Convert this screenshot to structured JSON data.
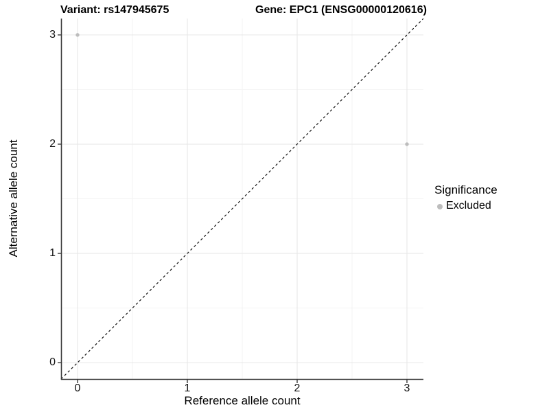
{
  "header": {
    "title_left": "Variant: rs147945675",
    "title_right": "Gene: EPC1 (ENSG00000120616)"
  },
  "axes": {
    "x_label": "Reference allele count",
    "y_label": "Alternative allele count"
  },
  "legend": {
    "title": "Significance",
    "items": [
      {
        "label": "Excluded",
        "color": "#bdbdbd"
      }
    ]
  },
  "chart_data": {
    "type": "scatter",
    "titles": [
      "Variant: rs147945675",
      "Gene: EPC1 (ENSG00000120616)"
    ],
    "xlabel": "Reference allele count",
    "ylabel": "Alternative allele count",
    "xlim": [
      -0.15,
      3.15
    ],
    "ylim": [
      -0.15,
      3.15
    ],
    "x_ticks": [
      0,
      1,
      2,
      3
    ],
    "y_ticks": [
      0,
      1,
      2,
      3
    ],
    "minor_gridlines": [
      0.5,
      1.5,
      2.5
    ],
    "grid": "on",
    "legend_position": "right",
    "series": [
      {
        "name": "Excluded",
        "color": "#bdbdbd",
        "points": [
          {
            "x": 0,
            "y": 3
          },
          {
            "x": 3,
            "y": 2
          }
        ]
      }
    ],
    "reference_line": {
      "type": "identity",
      "equation": "y = x",
      "style": "dashed",
      "color": "#111111"
    },
    "colors": {
      "point": "#bdbdbd",
      "grid_major": "#e6e6e6",
      "grid_minor": "#f3f3f3",
      "axis_line": "#3a3a3a",
      "reference_line": "#111111",
      "text": "#000000"
    }
  }
}
